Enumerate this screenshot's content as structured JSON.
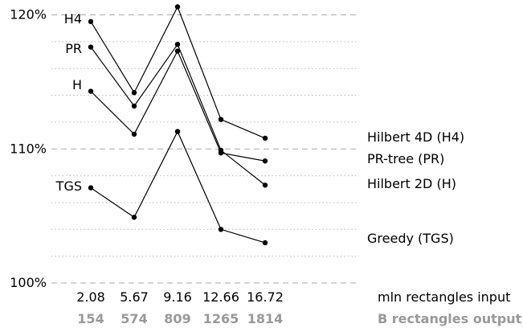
{
  "chart_data": {
    "type": "line",
    "x": [
      "2.08",
      "5.67",
      "9.16",
      "12.66",
      "16.72"
    ],
    "x2": [
      "154",
      "574",
      "809",
      "1265",
      "1814"
    ],
    "xlabel": "mln rectangles input",
    "xlabel2": "B rectangles output",
    "yticks": [
      "100%",
      "110%",
      "120%"
    ],
    "ylim": [
      100,
      120.6
    ],
    "grid": "horizontal dashed (major) and dotted (minor)",
    "series": [
      {
        "name": "Hilbert 4D (H4)",
        "short": "H4",
        "values": [
          119.5,
          114.2,
          120.6,
          112.2,
          110.8
        ]
      },
      {
        "name": "PR-tree (PR)",
        "short": "PR",
        "values": [
          117.6,
          113.2,
          117.8,
          109.9,
          107.3
        ]
      },
      {
        "name": "Hilbert 2D (H)",
        "short": "H",
        "values": [
          114.3,
          111.1,
          117.3,
          109.7,
          109.1
        ]
      },
      {
        "name": "Greedy (TGS)",
        "short": "TGS",
        "values": [
          107.1,
          104.9,
          111.3,
          104.0,
          103.0
        ]
      }
    ]
  }
}
